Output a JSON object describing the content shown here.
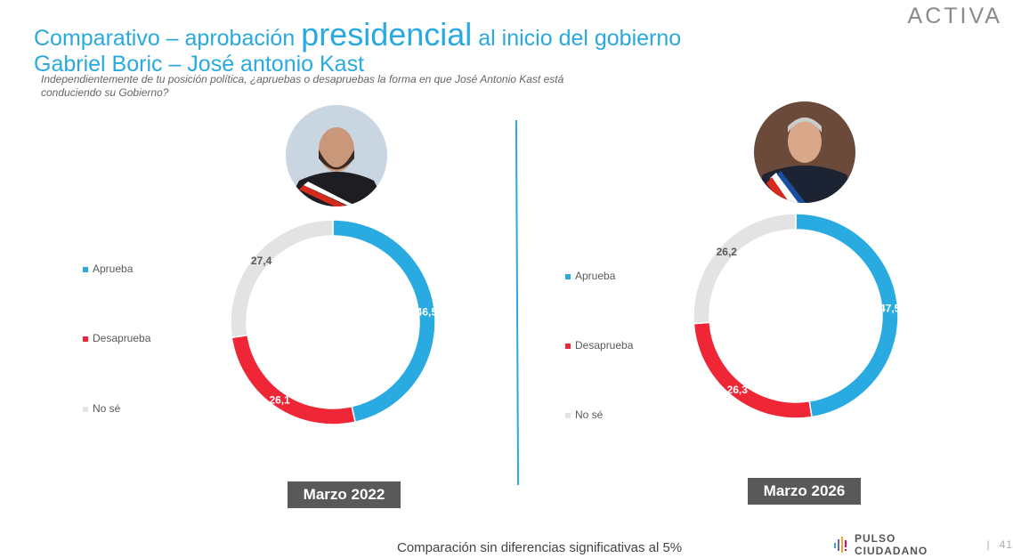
{
  "header": {
    "title_part1": "Comparativo – aprobación ",
    "title_big": "presidencial",
    "title_part2": "  al inicio del gobierno",
    "subtitle": "Gabriel Boric – José antonio Kast",
    "question": "Independientemente de tu posición política, ¿apruebas o desapruebas la forma en que José Antonio Kast está conduciendo su Gobierno?"
  },
  "logo": "ACTIVA",
  "colors": {
    "aprueba": "#29abe2",
    "desaprueba": "#ee2636",
    "nose": "#e3e3e3",
    "accent": "#29a9e1"
  },
  "chart_data": [
    {
      "type": "pie",
      "variant": "donut",
      "label": "Marzo 2022",
      "categories": [
        "Aprueba",
        "Desaprueba",
        "No sé"
      ],
      "values": [
        46.5,
        26.1,
        27.4
      ],
      "value_labels": [
        "46,5",
        "26,1",
        "27,4"
      ],
      "legend": "left"
    },
    {
      "type": "pie",
      "variant": "donut",
      "label": "Marzo 2026",
      "categories": [
        "Aprueba",
        "Desaprueba",
        "No sé"
      ],
      "values": [
        47.5,
        26.3,
        26.2
      ],
      "value_labels": [
        "47,5",
        "26,3",
        "26,2"
      ],
      "legend": "left"
    }
  ],
  "footer": {
    "note": "Comparación sin diferencias significativas al 5%",
    "brand": "PULSO CIUDADANO",
    "separator": "|",
    "page": "41"
  }
}
